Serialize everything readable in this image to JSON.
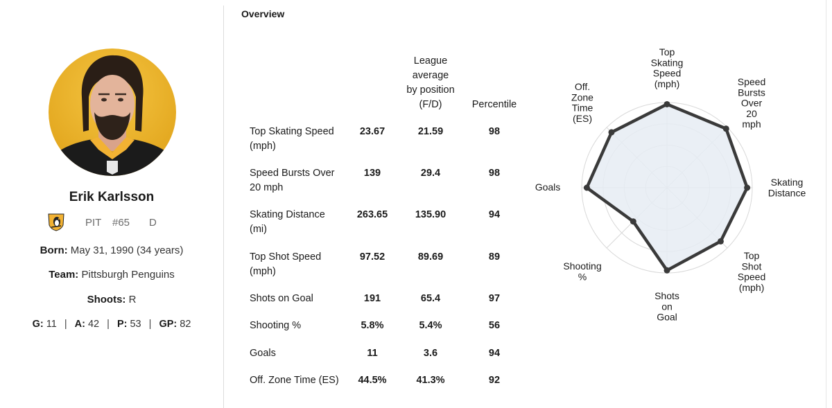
{
  "player": {
    "name": "Erik Karlsson",
    "team_abbr": "PIT",
    "number": "#65",
    "position": "D",
    "born_label": "Born:",
    "born_value": "May 31, 1990 (34 years)",
    "team_label": "Team:",
    "team_value": "Pittsburgh Penguins",
    "shoots_label": "Shoots:",
    "shoots_value": "R",
    "stats": {
      "g_label": "G:",
      "g": "11",
      "a_label": "A:",
      "a": "42",
      "p_label": "P:",
      "p": "53",
      "gp_label": "GP:",
      "gp": "82",
      "separator": "|"
    }
  },
  "overview": {
    "title": "Overview",
    "col_avg_lines": [
      "League",
      "average",
      "by position",
      "(F/D)"
    ],
    "col_pct": "Percentile",
    "rows": [
      {
        "label_lines": [
          "Top Skating Speed",
          "(mph)"
        ],
        "player": "23.67",
        "avg": "21.59",
        "pct": "98"
      },
      {
        "label_lines": [
          "Speed Bursts Over",
          "20 mph"
        ],
        "player": "139",
        "avg": "29.4",
        "pct": "98"
      },
      {
        "label_lines": [
          "Skating Distance",
          "(mi)"
        ],
        "player": "263.65",
        "avg": "135.90",
        "pct": "94"
      },
      {
        "label_lines": [
          "Top Shot Speed",
          "(mph)"
        ],
        "player": "97.52",
        "avg": "89.69",
        "pct": "89"
      },
      {
        "label_lines": [
          "Shots on Goal"
        ],
        "player": "191",
        "avg": "65.4",
        "pct": "97"
      },
      {
        "label_lines": [
          "Shooting %"
        ],
        "player": "5.8%",
        "avg": "5.4%",
        "pct": "56"
      },
      {
        "label_lines": [
          "Goals"
        ],
        "player": "11",
        "avg": "3.6",
        "pct": "94"
      },
      {
        "label_lines": [
          "Off. Zone Time (ES)"
        ],
        "player": "44.5%",
        "avg": "41.3%",
        "pct": "92"
      }
    ]
  },
  "radar": {
    "axes": [
      {
        "label_lines": [
          "Top",
          "Skating",
          "Speed",
          "(mph)"
        ],
        "percentile": 98
      },
      {
        "label_lines": [
          "Speed",
          "Bursts",
          "Over",
          "20",
          "mph"
        ],
        "percentile": 98
      },
      {
        "label_lines": [
          "Skating",
          "Distance"
        ],
        "percentile": 94
      },
      {
        "label_lines": [
          "Top",
          "Shot",
          "Speed",
          "(mph)"
        ],
        "percentile": 89
      },
      {
        "label_lines": [
          "Shots",
          "on",
          "Goal"
        ],
        "percentile": 97
      },
      {
        "label_lines": [
          "Shooting",
          "%"
        ],
        "percentile": 56
      },
      {
        "label_lines": [
          "Goals"
        ],
        "percentile": 94
      },
      {
        "label_lines": [
          "Off.",
          "Zone",
          "Time",
          "(ES)"
        ],
        "percentile": 92
      }
    ],
    "colors": {
      "fill": "#e6ecf3",
      "stroke": "#3a3a3a",
      "grid": "#d8d8d8"
    }
  }
}
